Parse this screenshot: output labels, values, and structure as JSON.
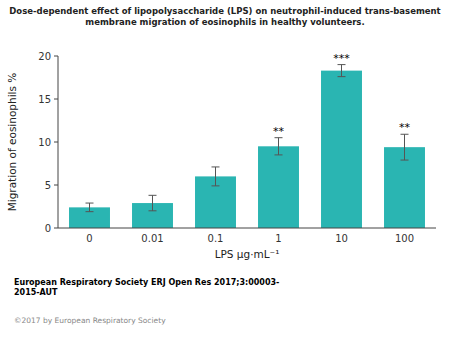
{
  "chart_data": {
    "type": "bar",
    "title": "Dose-dependent effect of lipopolysaccharide (LPS) on neutrophil-induced trans-basement\nmembrane migration of eosinophils in healthy volunteers.",
    "categories": [
      "0",
      "0.01",
      "0.1",
      "1",
      "10",
      "100"
    ],
    "values": [
      2.4,
      2.9,
      6.0,
      9.5,
      18.3,
      9.4
    ],
    "errors": [
      0.5,
      0.9,
      1.1,
      1.0,
      0.7,
      1.5
    ],
    "significance": [
      null,
      null,
      null,
      "**",
      "***",
      "**"
    ],
    "color": "#2ab5b2",
    "xlabel": "LPS μg·mL⁻¹",
    "ylabel": "Migration of eosinophils %",
    "ylim": [
      0,
      20
    ],
    "yticks": [
      0,
      5,
      10,
      15,
      20
    ],
    "grid": false,
    "footnotes": [
      "European Respiratory Society ERJ Open Res 2017;3:00003-\n2015-AUT",
      "©2017 by European Respiratory Society"
    ]
  }
}
